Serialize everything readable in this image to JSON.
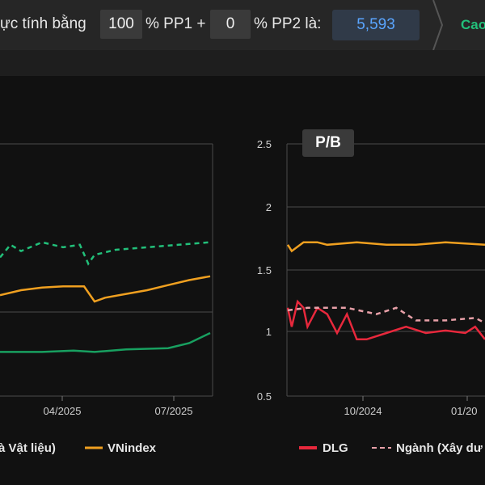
{
  "formula_bar": {
    "prefix": "ực tính bằng",
    "pp1_value": "100",
    "pp1_label": "% PP1 +",
    "pp2_value": "0",
    "pp2_label": "% PP2 là:",
    "result": "5,593",
    "next_label": "Cao"
  },
  "chart_data": [
    {
      "type": "line",
      "title": "",
      "x_ticks": [
        "04/2025",
        "07/2025"
      ],
      "series": [
        {
          "name": "à Vật liệu)",
          "color": "#22c07a",
          "style": "dashed",
          "values": [
            [
              0,
              1.6
            ],
            [
              0.05,
              1.7
            ],
            [
              0.1,
              1.65
            ],
            [
              0.2,
              1.72
            ],
            [
              0.3,
              1.68
            ],
            [
              0.38,
              1.7
            ],
            [
              0.42,
              1.55
            ],
            [
              0.45,
              1.62
            ],
            [
              0.55,
              1.66
            ],
            [
              0.7,
              1.68
            ],
            [
              0.85,
              1.7
            ],
            [
              1,
              1.72
            ]
          ]
        },
        {
          "name": "VNindex",
          "color": "#f0a020",
          "style": "solid",
          "values": [
            [
              0,
              1.3
            ],
            [
              0.1,
              1.34
            ],
            [
              0.2,
              1.36
            ],
            [
              0.3,
              1.37
            ],
            [
              0.4,
              1.37
            ],
            [
              0.45,
              1.25
            ],
            [
              0.5,
              1.28
            ],
            [
              0.6,
              1.31
            ],
            [
              0.7,
              1.34
            ],
            [
              0.8,
              1.38
            ],
            [
              0.9,
              1.42
            ],
            [
              1,
              1.45
            ]
          ]
        },
        {
          "name": "",
          "color": "#18a060",
          "style": "solid",
          "values": [
            [
              0,
              0.85
            ],
            [
              0.2,
              0.85
            ],
            [
              0.35,
              0.86
            ],
            [
              0.45,
              0.85
            ],
            [
              0.6,
              0.87
            ],
            [
              0.8,
              0.88
            ],
            [
              0.9,
              0.92
            ],
            [
              1,
              1.0
            ]
          ]
        }
      ]
    },
    {
      "type": "line",
      "title": "P/B",
      "yticks": [
        "2.5",
        "2",
        "1.5",
        "1",
        "0.5"
      ],
      "ylim": [
        0.5,
        2.5
      ],
      "x_ticks": [
        "10/2024",
        "01/20"
      ],
      "series": [
        {
          "name": "DLG",
          "color": "#e8283c",
          "style": "solid",
          "values": [
            [
              0,
              1.2
            ],
            [
              0.02,
              1.05
            ],
            [
              0.05,
              1.25
            ],
            [
              0.08,
              1.2
            ],
            [
              0.1,
              1.05
            ],
            [
              0.15,
              1.2
            ],
            [
              0.2,
              1.15
            ],
            [
              0.25,
              1.0
            ],
            [
              0.3,
              1.15
            ],
            [
              0.35,
              0.95
            ],
            [
              0.4,
              0.95
            ],
            [
              0.5,
              1.0
            ],
            [
              0.6,
              1.05
            ],
            [
              0.7,
              1.0
            ],
            [
              0.8,
              1.02
            ],
            [
              0.9,
              1.0
            ],
            [
              0.95,
              1.05
            ],
            [
              1,
              0.95
            ]
          ]
        },
        {
          "name": "Ngành (Xây dư",
          "color": "#e8a0a8",
          "style": "dashed",
          "values": [
            [
              0,
              1.18
            ],
            [
              0.1,
              1.2
            ],
            [
              0.3,
              1.2
            ],
            [
              0.45,
              1.15
            ],
            [
              0.55,
              1.2
            ],
            [
              0.65,
              1.1
            ],
            [
              0.8,
              1.1
            ],
            [
              0.95,
              1.12
            ],
            [
              1,
              1.08
            ]
          ]
        },
        {
          "name": "",
          "color": "#f0a020",
          "style": "solid",
          "values": [
            [
              0,
              1.7
            ],
            [
              0.02,
              1.65
            ],
            [
              0.08,
              1.72
            ],
            [
              0.15,
              1.72
            ],
            [
              0.2,
              1.7
            ],
            [
              0.35,
              1.72
            ],
            [
              0.5,
              1.7
            ],
            [
              0.65,
              1.7
            ],
            [
              0.8,
              1.72
            ],
            [
              1,
              1.7
            ]
          ]
        }
      ]
    }
  ],
  "legend": {
    "left_series1": "à Vật liệu)",
    "left_series2": "VNindex",
    "right_series1": "DLG",
    "right_series2": "Ngành (Xây dư"
  }
}
